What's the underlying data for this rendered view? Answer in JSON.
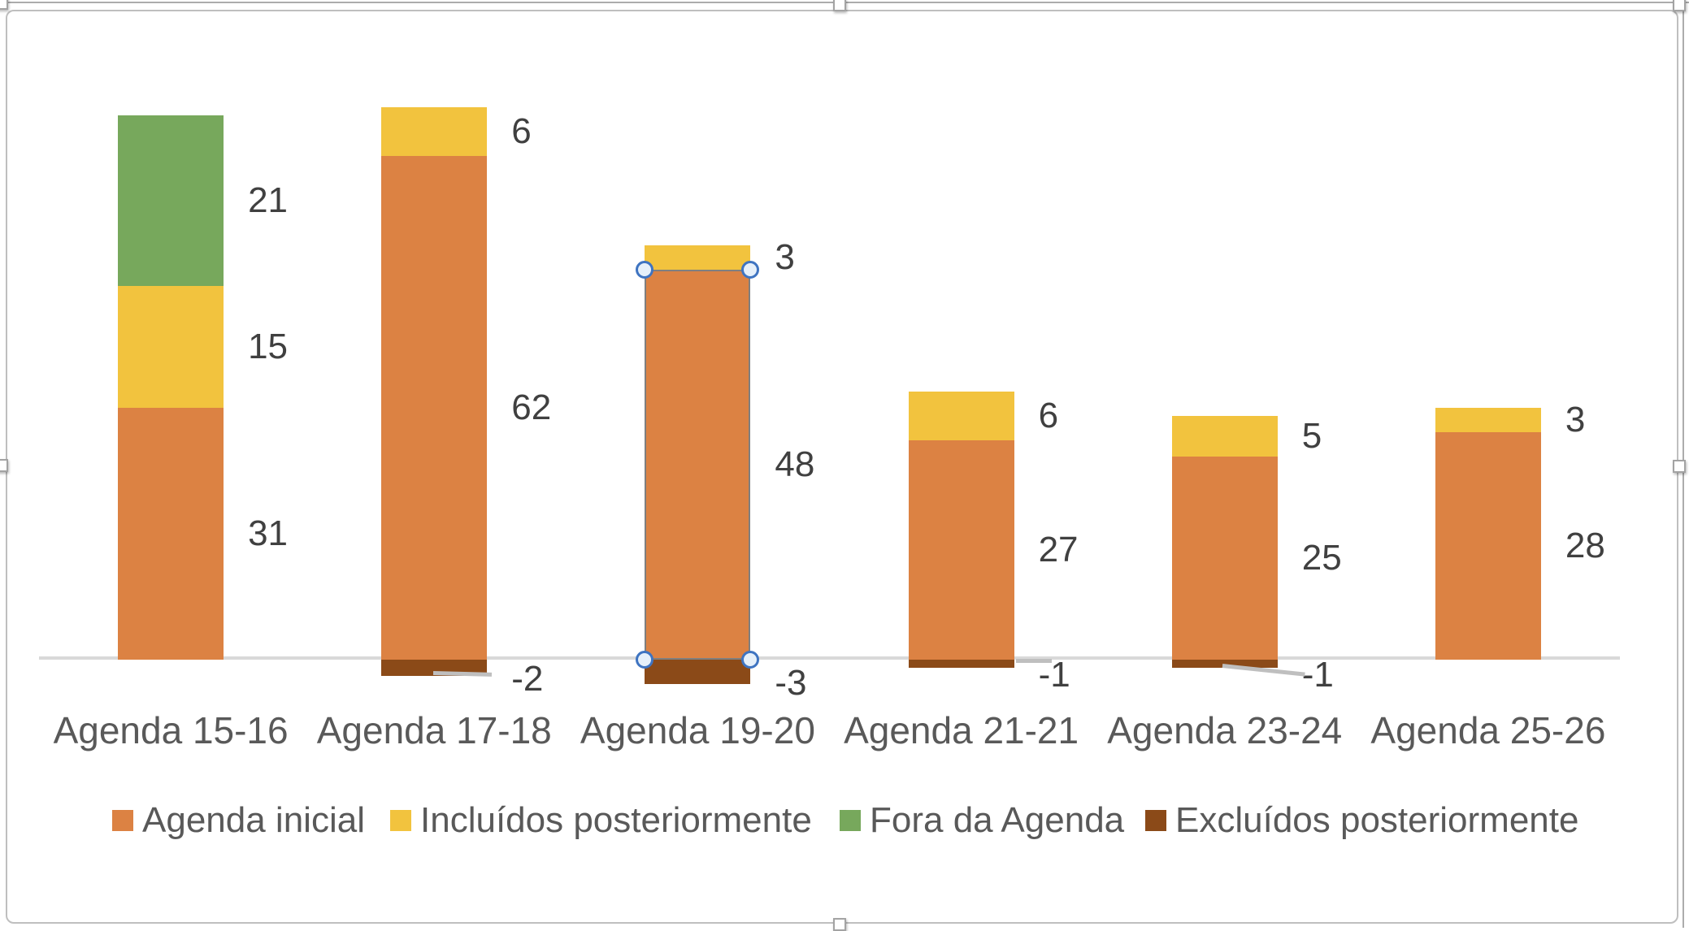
{
  "chart_data": {
    "type": "bar",
    "variant": "stacked-column",
    "title": "",
    "categories": [
      "Agenda 15-16",
      "Agenda 17-18",
      "Agenda 19-20",
      "Agenda 21-21",
      "Agenda 23-24",
      "Agenda 25-26"
    ],
    "series": [
      {
        "name": "Agenda inicial",
        "color": "#dc8243",
        "values": [
          31,
          62,
          48,
          27,
          25,
          28
        ]
      },
      {
        "name": "Incluídos posteriormente",
        "color": "#f2c33e",
        "values": [
          15,
          6,
          3,
          6,
          5,
          3
        ]
      },
      {
        "name": "Fora da Agenda",
        "color": "#77a85c",
        "values": [
          21,
          0,
          0,
          0,
          0,
          0
        ]
      },
      {
        "name": "Excluídos posteriormente",
        "color": "#8b4a18",
        "values": [
          0,
          -2,
          -3,
          -1,
          -1,
          0
        ]
      }
    ],
    "data_labels": {
      "show": true,
      "position": "right-of-segment",
      "hide_zero": true,
      "visible_labels": [
        "21",
        "15",
        "31",
        "6",
        "62",
        "-2",
        "3",
        "48",
        "-3",
        "6",
        "27",
        "-1",
        "5",
        "25",
        "-1",
        "3",
        "28"
      ]
    },
    "legend_position": "bottom",
    "xlabel": "",
    "ylabel": "",
    "ylim": [
      -5,
      75
    ],
    "y_axis_visible": false,
    "zero_baseline_visible": true,
    "grid": false,
    "leader_line_categories": [
      "Agenda 17-18",
      "Agenda 21-21",
      "Agenda 23-24"
    ]
  },
  "selection": {
    "chart_selected": true,
    "selected_point": {
      "series": "Agenda inicial",
      "category": "Agenda 19-20"
    },
    "point_handle_color": "#3f74c1",
    "segment_outline_color": "#7f7f7f"
  },
  "style_colors": {
    "axis_line": "#d9d9d9",
    "leader_line": "#bfbfbf",
    "category_text": "#595959",
    "data_label_text": "#404040",
    "chart_border": "#bfbfbf",
    "outer_edge": "#acacac"
  }
}
